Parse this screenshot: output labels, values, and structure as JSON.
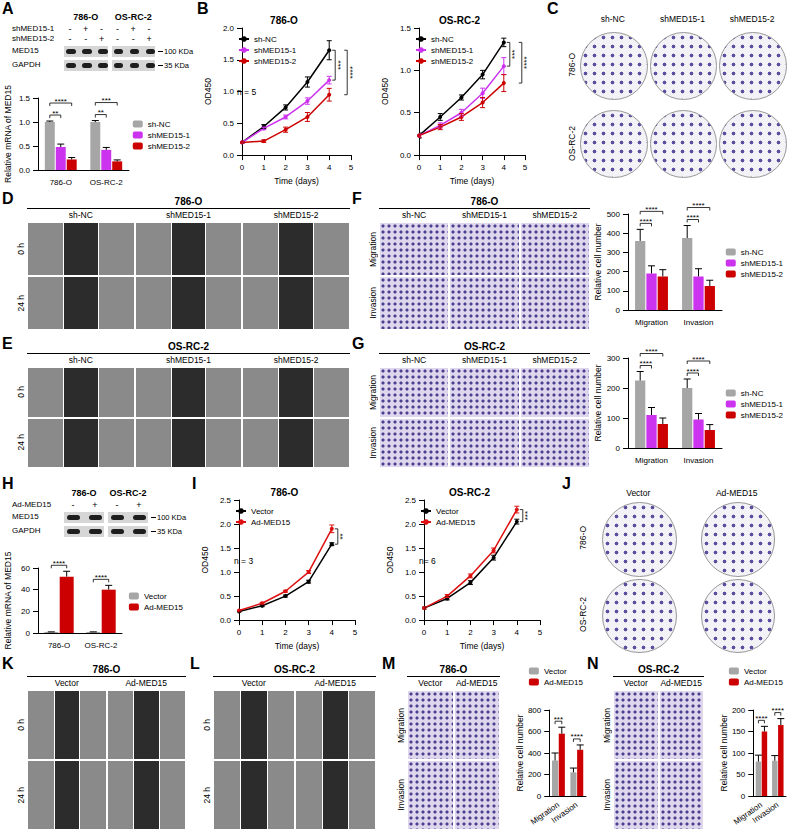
{
  "panels": [
    {
      "letter": "A",
      "blot": {
        "groups": [
          "786-O",
          "OS-RC-2"
        ],
        "rows": [
          {
            "label": "shMED15-1",
            "marks": [
              "-",
              "+",
              "-"
            ]
          },
          {
            "label": "shMED15-2",
            "marks": [
              "-",
              "-",
              "+"
            ]
          }
        ],
        "bands": [
          "MED15",
          "GAPDH"
        ],
        "markers": [
          "100 KDa",
          "35 KDa"
        ]
      }
    },
    {
      "letter": "B"
    },
    {
      "letter": "C",
      "images": {
        "type": "colony",
        "columns": [
          "sh-NC",
          "shMED15-1",
          "shMED15-2"
        ],
        "rows": [
          "786-O",
          "OS-RC-2"
        ]
      }
    },
    {
      "letter": "D",
      "images": {
        "type": "wound",
        "title": "786-O",
        "columns": [
          "sh-NC",
          "shMED15-1",
          "shMED15-2"
        ],
        "rows": [
          "0 h",
          "24 h"
        ]
      }
    },
    {
      "letter": "E",
      "images": {
        "type": "wound",
        "title": "OS-RC-2",
        "columns": [
          "sh-NC",
          "shMED15-1",
          "shMED15-2"
        ],
        "rows": [
          "0 h",
          "24 h"
        ]
      }
    },
    {
      "letter": "F",
      "images": {
        "type": "transwell",
        "title": "786-O",
        "columns": [
          "sh-NC",
          "shMED15-1",
          "shMED15-2"
        ],
        "rows": [
          "Migration",
          "Invasion"
        ]
      }
    },
    {
      "letter": "G",
      "images": {
        "type": "transwell",
        "title": "OS-RC-2",
        "columns": [
          "sh-NC",
          "shMED15-1",
          "shMED15-2"
        ],
        "rows": [
          "Migration",
          "Invasion"
        ]
      }
    },
    {
      "letter": "H",
      "blot": {
        "groups": [
          "786-O",
          "OS-RC-2"
        ],
        "rows": [
          {
            "label": "Ad-MED15",
            "marks": [
              "-",
              "+"
            ]
          }
        ],
        "bands": [
          "MED15",
          "GAPDH"
        ],
        "markers": [
          "100 KDa",
          "35 KDa"
        ]
      }
    },
    {
      "letter": "I"
    },
    {
      "letter": "J",
      "images": {
        "type": "colony",
        "columns": [
          "Vector",
          "Ad-MED15"
        ],
        "rows": [
          "786-O",
          "OS-RC-2"
        ]
      }
    },
    {
      "letter": "K",
      "images": {
        "type": "wound",
        "title": "786-O",
        "columns": [
          "Vector",
          "Ad-MED15"
        ],
        "rows": [
          "0 h",
          "24 h"
        ]
      }
    },
    {
      "letter": "L",
      "images": {
        "type": "wound",
        "title": "OS-RC-2",
        "columns": [
          "Vector",
          "Ad-MED15"
        ],
        "rows": [
          "0 h",
          "24 h"
        ]
      }
    },
    {
      "letter": "M",
      "images": {
        "type": "transwell",
        "title": "786-O",
        "columns": [
          "Vector",
          "Ad-MED15"
        ],
        "rows": [
          "Migration",
          "Invasion"
        ]
      }
    },
    {
      "letter": "N",
      "images": {
        "type": "transwell",
        "title": "OS-RC-2",
        "columns": [
          "Vector",
          "Ad-MED15"
        ],
        "rows": [
          "Migration",
          "Invasion"
        ]
      }
    }
  ],
  "chart_data": [
    {
      "type": "bar",
      "ylabel": "Relative mRNA of MED15",
      "categories": [
        "786-O",
        "OS-RC-2"
      ],
      "series": [
        {
          "name": "sh-NC",
          "color": "#a6a6a6",
          "values": [
            1,
            1
          ],
          "errors": [
            0.02,
            0.03
          ]
        },
        {
          "name": "shMED15-1",
          "color": "#cc33ee",
          "values": [
            0.48,
            0.42
          ],
          "errors": [
            0.06,
            0.05
          ]
        },
        {
          "name": "shMED15-2",
          "color": "#cc0000",
          "values": [
            0.22,
            0.18
          ],
          "errors": [
            0.04,
            0.03
          ]
        }
      ],
      "ylim": [
        0,
        1.5
      ],
      "yticks": [
        {
          "value": 0,
          "label": "0.0"
        },
        0.5,
        {
          "value": 1,
          "label": "1.0"
        },
        1.5
      ],
      "grid": false,
      "legend": "right",
      "significance": [
        {
          "category": "786-O",
          "from": "sh-NC",
          "to": "shMED15-1",
          "text": "**"
        },
        {
          "category": "786-O",
          "from": "sh-NC",
          "to": "shMED15-2",
          "text": "****"
        },
        {
          "category": "OS-RC-2",
          "from": "sh-NC",
          "to": "shMED15-1",
          "text": "**"
        },
        {
          "category": "OS-RC-2",
          "from": "sh-NC",
          "to": "shMED15-2",
          "text": "***"
        }
      ]
    },
    {
      "type": "line",
      "title": "786-O",
      "xlabel": "Time (days)",
      "ylabel": "OD450",
      "x": [
        0,
        1,
        2,
        3,
        4
      ],
      "marker": "circle",
      "series": [
        {
          "name": "sh-NC",
          "color": "#000000",
          "values": [
            0.2,
            0.45,
            0.75,
            1.15,
            1.65
          ],
          "errors": [
            0.01,
            0.03,
            0.04,
            0.08,
            0.15
          ]
        },
        {
          "name": "shMED15-1",
          "color": "#cc33ee",
          "values": [
            0.2,
            0.42,
            0.6,
            0.85,
            1.18
          ],
          "errors": [
            0.01,
            0.02,
            0.03,
            0.05,
            0.06
          ]
        },
        {
          "name": "shMED15-2",
          "color": "#cc0000",
          "values": [
            0.2,
            0.22,
            0.4,
            0.6,
            0.95
          ],
          "errors": [
            0.01,
            0.02,
            0.04,
            0.07,
            0.1
          ]
        }
      ],
      "xlim": [
        0,
        5
      ],
      "xticks": [
        0,
        1,
        2,
        3,
        4,
        5
      ],
      "ylim": [
        0,
        2
      ],
      "yticks": [
        {
          "value": 0,
          "label": "0.0"
        },
        0.5,
        {
          "value": 1,
          "label": "1.0"
        },
        1.5,
        {
          "value": 2,
          "label": "2.0"
        }
      ],
      "grid": false,
      "legend": "upper left",
      "note": "n = 5",
      "significance": [
        {
          "from": "sh-NC",
          "to": "shMED15-1",
          "text": "***"
        },
        {
          "from": "sh-NC",
          "to": "shMED15-2",
          "text": "****"
        }
      ]
    },
    {
      "type": "line",
      "title": "OS-RC-2",
      "xlabel": "Time (days)",
      "ylabel": "OD450",
      "x": [
        0,
        1,
        2,
        3,
        4
      ],
      "marker": "circle",
      "series": [
        {
          "name": "sh-NC",
          "color": "#000000",
          "values": [
            0.23,
            0.45,
            0.68,
            0.95,
            1.33
          ],
          "errors": [
            0.03,
            0.04,
            0.03,
            0.05,
            0.05
          ]
        },
        {
          "name": "shMED15-1",
          "color": "#cc33ee",
          "values": [
            0.23,
            0.35,
            0.5,
            0.73,
            1.05
          ],
          "errors": [
            0.02,
            0.03,
            0.04,
            0.06,
            0.1
          ]
        },
        {
          "name": "shMED15-2",
          "color": "#cc0000",
          "values": [
            0.23,
            0.33,
            0.45,
            0.62,
            0.85
          ],
          "errors": [
            0.02,
            0.03,
            0.04,
            0.06,
            0.1
          ]
        }
      ],
      "xlim": [
        0,
        5
      ],
      "xticks": [
        0,
        1,
        2,
        3,
        4,
        5
      ],
      "ylim": [
        0,
        1.5
      ],
      "yticks": [
        {
          "value": 0,
          "label": "0.0"
        },
        0.5,
        {
          "value": 1,
          "label": "1.0"
        },
        1.5
      ],
      "grid": false,
      "legend": "upper left",
      "significance": [
        {
          "from": "sh-NC",
          "to": "shMED15-1",
          "text": "***"
        },
        {
          "from": "sh-NC",
          "to": "shMED15-2",
          "text": "****"
        }
      ]
    },
    {
      "type": "bar",
      "ylabel": "Relative cell number",
      "categories": [
        "Migration",
        "Invasion"
      ],
      "series": [
        {
          "name": "sh-NC",
          "color": "#a6a6a6",
          "values": [
            360,
            375
          ],
          "errors": [
            60,
            65
          ]
        },
        {
          "name": "shMED15-1",
          "color": "#cc33ee",
          "values": [
            190,
            175
          ],
          "errors": [
            40,
            40
          ]
        },
        {
          "name": "shMED15-2",
          "color": "#cc0000",
          "values": [
            175,
            125
          ],
          "errors": [
            35,
            30
          ]
        }
      ],
      "ylim": [
        0,
        500
      ],
      "yticks": [
        0,
        100,
        200,
        300,
        400,
        500
      ],
      "grid": false,
      "legend": "right",
      "significance": [
        {
          "category": "Migration",
          "from": "sh-NC",
          "to": "shMED15-1",
          "text": "****"
        },
        {
          "category": "Migration",
          "from": "sh-NC",
          "to": "shMED15-2",
          "text": "****"
        },
        {
          "category": "Invasion",
          "from": "sh-NC",
          "to": "shMED15-1",
          "text": "****"
        },
        {
          "category": "Invasion",
          "from": "sh-NC",
          "to": "shMED15-2",
          "text": "****"
        }
      ]
    },
    {
      "type": "bar",
      "ylabel": "Relative cell number",
      "categories": [
        "Migration",
        "Invasion"
      ],
      "series": [
        {
          "name": "sh-NC",
          "color": "#a6a6a6",
          "values": [
            225,
            200
          ],
          "errors": [
            30,
            30
          ]
        },
        {
          "name": "shMED15-1",
          "color": "#cc33ee",
          "values": [
            110,
            95
          ],
          "errors": [
            25,
            20
          ]
        },
        {
          "name": "shMED15-2",
          "color": "#cc0000",
          "values": [
            80,
            60
          ],
          "errors": [
            20,
            18
          ]
        }
      ],
      "ylim": [
        0,
        300
      ],
      "yticks": [
        0,
        100,
        200,
        300
      ],
      "grid": false,
      "legend": "right",
      "significance": [
        {
          "category": "Migration",
          "from": "sh-NC",
          "to": "shMED15-1",
          "text": "****"
        },
        {
          "category": "Migration",
          "from": "sh-NC",
          "to": "shMED15-2",
          "text": "****"
        },
        {
          "category": "Invasion",
          "from": "sh-NC",
          "to": "shMED15-1",
          "text": "****"
        },
        {
          "category": "Invasion",
          "from": "sh-NC",
          "to": "shMED15-2",
          "text": "****"
        }
      ]
    },
    {
      "type": "bar",
      "ylabel": "Relative mRNA of MED15",
      "categories": [
        "786-O",
        "OS-RC-2"
      ],
      "series": [
        {
          "name": "Vector",
          "color": "#a6a6a6",
          "values": [
            1,
            1
          ],
          "errors": [
            0.05,
            0.05
          ]
        },
        {
          "name": "Ad-MED15",
          "color": "#cc0000",
          "values": [
            52,
            40
          ],
          "errors": [
            5,
            4
          ]
        }
      ],
      "ylim": [
        0,
        60
      ],
      "yticks": [
        0,
        20,
        40,
        60
      ],
      "grid": false,
      "legend": "right",
      "significance": [
        {
          "category": "786-O",
          "from": "Vector",
          "to": "Ad-MED15",
          "text": "****"
        },
        {
          "category": "OS-RC-2",
          "from": "Vector",
          "to": "Ad-MED15",
          "text": "****"
        }
      ]
    },
    {
      "type": "line",
      "title": "786-O",
      "xlabel": "Time (days)",
      "ylabel": "OD450",
      "x": [
        0,
        1,
        2,
        3,
        4
      ],
      "marker": "circle",
      "series": [
        {
          "name": "Vector",
          "color": "#000000",
          "values": [
            0.18,
            0.3,
            0.5,
            0.8,
            1.58
          ],
          "errors": [
            0.01,
            0.02,
            0.02,
            0.03,
            0.03
          ]
        },
        {
          "name": "Ad-MED15",
          "color": "#dd1111",
          "values": [
            0.2,
            0.35,
            0.6,
            1.0,
            1.9
          ],
          "errors": [
            0.01,
            0.02,
            0.02,
            0.03,
            0.08
          ]
        }
      ],
      "xlim": [
        0,
        5
      ],
      "xticks": [
        0,
        1,
        2,
        3,
        4,
        5
      ],
      "ylim": [
        0,
        2.5
      ],
      "yticks": [
        {
          "value": 0,
          "label": "0.0"
        },
        0.5,
        {
          "value": 1,
          "label": "1.0"
        },
        1.5,
        {
          "value": 2,
          "label": "2.0"
        },
        2.5
      ],
      "grid": false,
      "legend": "upper left",
      "note": "n = 3",
      "significance": [
        {
          "from": "Vector",
          "to": "Ad-MED15",
          "text": "**"
        }
      ]
    },
    {
      "type": "line",
      "title": "OS-RC-2",
      "xlabel": "Time (days)",
      "ylabel": "OD450",
      "x": [
        0,
        1,
        2,
        3,
        4
      ],
      "marker": "circle",
      "series": [
        {
          "name": "Vector",
          "color": "#000000",
          "values": [
            0.25,
            0.45,
            0.78,
            1.3,
            2.05
          ],
          "errors": [
            0.02,
            0.03,
            0.04,
            0.05,
            0.05
          ]
        },
        {
          "name": "Ad-MED15",
          "color": "#dd1111",
          "values": [
            0.25,
            0.5,
            0.92,
            1.45,
            2.3
          ],
          "errors": [
            0.02,
            0.03,
            0.04,
            0.05,
            0.07
          ]
        }
      ],
      "xlim": [
        0,
        5
      ],
      "xticks": [
        0,
        1,
        2,
        3,
        4,
        5
      ],
      "ylim": [
        0,
        2.5
      ],
      "yticks": [
        {
          "value": 0,
          "label": "0.0"
        },
        0.5,
        {
          "value": 1,
          "label": "1.0"
        },
        1.5,
        {
          "value": 2,
          "label": "2.0"
        },
        2.5
      ],
      "grid": false,
      "legend": "upper left",
      "note": "n= 6",
      "significance": [
        {
          "from": "Vector",
          "to": "Ad-MED15",
          "text": "***"
        }
      ]
    },
    {
      "type": "bar",
      "ylabel": "Relative cell number",
      "categories": [
        "Migration",
        "Invasion"
      ],
      "series": [
        {
          "name": "Vector",
          "color": "#a6a6a6",
          "values": [
            330,
            220
          ],
          "errors": [
            70,
            40
          ]
        },
        {
          "name": "Ad-MED15",
          "color": "#cc0000",
          "values": [
            580,
            430
          ],
          "errors": [
            60,
            45
          ]
        }
      ],
      "ylim": [
        0,
        800
      ],
      "yticks": [
        0,
        200,
        400,
        600,
        800
      ],
      "grid": false,
      "legend": "upper right",
      "significance": [
        {
          "category": "Migration",
          "from": "Vector",
          "to": "Ad-MED15",
          "text": "***"
        },
        {
          "category": "Invasion",
          "from": "Vector",
          "to": "Ad-MED15",
          "text": "****"
        }
      ]
    },
    {
      "type": "bar",
      "ylabel": "Relative cell number",
      "categories": [
        "Migration",
        "Invasion"
      ],
      "series": [
        {
          "name": "Vector",
          "color": "#a6a6a6",
          "values": [
            80,
            82
          ],
          "errors": [
            15,
            12
          ]
        },
        {
          "name": "Ad-MED15",
          "color": "#cc0000",
          "values": [
            150,
            165
          ],
          "errors": [
            12,
            15
          ]
        }
      ],
      "ylim": [
        0,
        200
      ],
      "yticks": [
        0,
        50,
        100,
        150,
        200
      ],
      "grid": false,
      "legend": "upper right",
      "significance": [
        {
          "category": "Migration",
          "from": "Vector",
          "to": "Ad-MED15",
          "text": "****"
        },
        {
          "category": "Invasion",
          "from": "Vector",
          "to": "Ad-MED15",
          "text": "****"
        }
      ]
    }
  ]
}
